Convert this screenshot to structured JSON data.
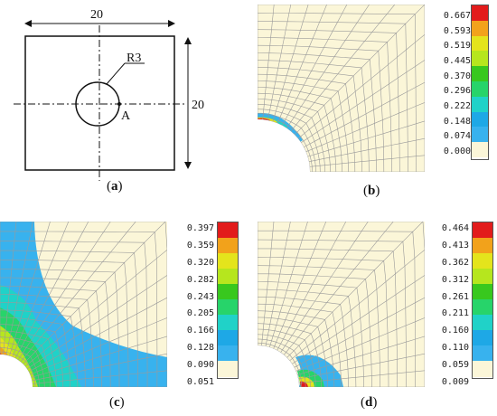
{
  "panel_a": {
    "width_label": "20",
    "height_label": "20",
    "radius_label": "R3",
    "point_label": "A",
    "caption": "a"
  },
  "panel_b": {
    "caption": "b",
    "legend": [
      "0.667",
      "0.593",
      "0.519",
      "0.445",
      "0.370",
      "0.296",
      "0.222",
      "0.148",
      "0.074",
      "0.000"
    ],
    "colors": [
      "#e21b1b",
      "#f2a21b",
      "#e4e41c",
      "#b6e61e",
      "#38c81e",
      "#27d46a",
      "#20d2c8",
      "#1ea8e6",
      "#38b2ee",
      "#fbf6d8"
    ]
  },
  "panel_c": {
    "caption": "c",
    "legend": [
      "0.397",
      "0.359",
      "0.320",
      "0.282",
      "0.243",
      "0.205",
      "0.166",
      "0.128",
      "0.090",
      "0.051"
    ],
    "colors": [
      "#e21b1b",
      "#f2a21b",
      "#e4e41c",
      "#b6e61e",
      "#38c81e",
      "#27d46a",
      "#20d2c8",
      "#1ea8e6",
      "#38b2ee",
      "#fbf6d8"
    ]
  },
  "panel_d": {
    "caption": "d",
    "legend": [
      "0.464",
      "0.413",
      "0.362",
      "0.312",
      "0.261",
      "0.211",
      "0.160",
      "0.110",
      "0.059",
      "0.009"
    ],
    "colors": [
      "#e21b1b",
      "#f2a21b",
      "#e4e41c",
      "#b6e61e",
      "#38c81e",
      "#27d46a",
      "#20d2c8",
      "#1ea8e6",
      "#38b2ee",
      "#fbf6d8"
    ]
  }
}
